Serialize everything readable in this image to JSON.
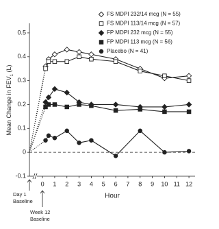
{
  "chart_data": {
    "type": "line",
    "ylabel": "Mean Change in FEV",
    "ylabel_sub": "1",
    "ylabel_end": " (L)",
    "xlabel": "Hour",
    "x": [
      0.25,
      0.5,
      1,
      2,
      3,
      4,
      6,
      8,
      10,
      12
    ],
    "series": [
      {
        "name": "FS MDPI 232/14 mcg (N = 55)",
        "color": "#222222",
        "marker": "open-diamond",
        "values": [
          0.36,
          0.39,
          0.41,
          0.43,
          0.42,
          0.41,
          0.39,
          0.35,
          0.31,
          0.32
        ]
      },
      {
        "name": "FS MDPI 113/14 mcg (N = 57)",
        "color": "#222222",
        "marker": "open-square",
        "values": [
          0.35,
          0.38,
          0.38,
          0.38,
          0.4,
          0.39,
          0.38,
          0.34,
          0.32,
          0.3
        ]
      },
      {
        "name": "FP MDPI 232 mcg (N = 55)",
        "color": "#222222",
        "marker": "filled-diamond",
        "values": [
          0.21,
          0.23,
          0.265,
          0.25,
          0.21,
          0.2,
          0.2,
          0.19,
          0.19,
          0.2
        ]
      },
      {
        "name": "FP MDPI 113 mcg (N = 56)",
        "color": "#222222",
        "marker": "filled-square",
        "values": [
          0.19,
          0.2,
          0.2,
          0.19,
          0.2,
          0.195,
          0.175,
          0.18,
          0.17,
          0.17
        ]
      },
      {
        "name": "Placebo (N = 41)",
        "color": "#222222",
        "marker": "filled-circle",
        "values": [
          0.05,
          0.07,
          0.06,
          0.09,
          0.04,
          0.05,
          -0.015,
          0.09,
          0.0,
          0.005
        ]
      }
    ],
    "xlim": [
      -1.07,
      12.5
    ],
    "xticks": [
      0,
      1,
      2,
      3,
      4,
      5,
      6,
      7,
      8,
      9,
      10,
      11,
      12
    ],
    "ylim": [
      -0.1,
      0.54
    ],
    "yticks": [
      -0.1,
      0,
      0.1,
      0.2,
      0.3,
      0.4,
      0.5
    ],
    "annotations": [
      [
        "Day 1",
        "Baseline"
      ],
      [
        "Week 12",
        "Baseline"
      ]
    ]
  }
}
